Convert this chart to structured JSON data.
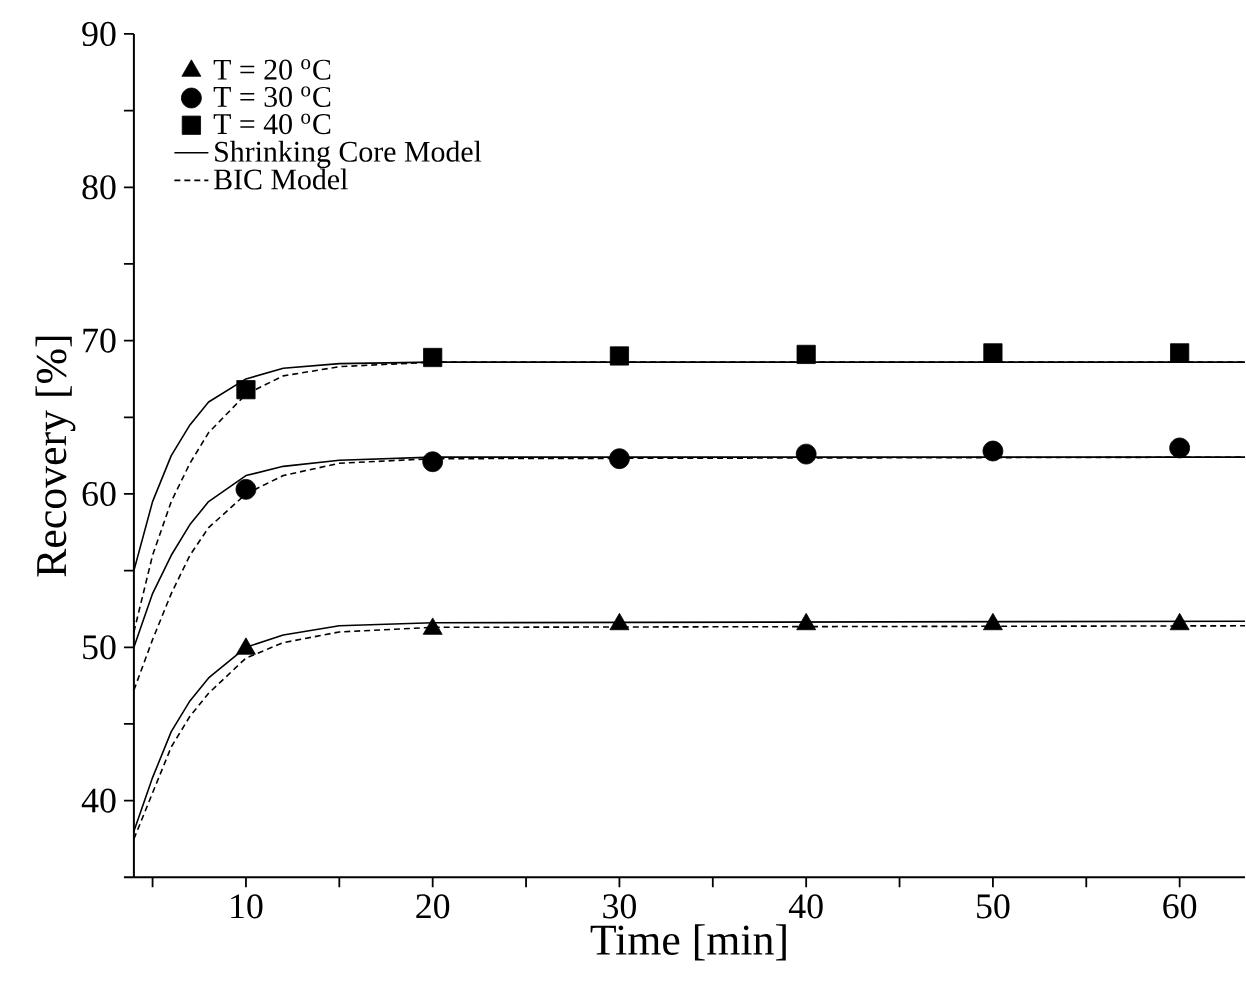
{
  "chart_data": {
    "type": "scatter",
    "xlabel": "Time [min]",
    "ylabel": "Recovery [%]",
    "xlim": [
      4,
      63.5
    ],
    "ylim": [
      35,
      90
    ],
    "xticks": [
      {
        "value": 5,
        "label": null
      },
      10,
      {
        "value": 15,
        "label": null
      },
      20,
      {
        "value": 25,
        "label": null
      },
      30,
      {
        "value": 35,
        "label": null
      },
      40,
      {
        "value": 45,
        "label": null
      },
      50,
      {
        "value": 55,
        "label": null
      },
      60
    ],
    "yticks": [
      {
        "value": 35,
        "label": null
      },
      40,
      {
        "value": 45,
        "label": null
      },
      50,
      {
        "value": 55,
        "label": null
      },
      60,
      {
        "value": 65,
        "label": null
      },
      70,
      {
        "value": 75,
        "label": null
      },
      80,
      {
        "value": 85,
        "label": null
      },
      90
    ],
    "grid": false,
    "legend": "top left",
    "series": [
      {
        "name": "T = 20 $^{o}$C",
        "marker": "triangle",
        "color": "#000000",
        "x": [
          10,
          20,
          30,
          40,
          50,
          60
        ],
        "values": [
          49.9,
          51.2,
          51.5,
          51.5,
          51.5,
          51.5
        ]
      },
      {
        "name": "T = 30 $^{o}$C",
        "marker": "circle",
        "color": "#000000",
        "x": [
          10,
          20,
          30,
          40,
          50,
          60
        ],
        "values": [
          60.3,
          62.1,
          62.3,
          62.6,
          62.8,
          63.0
        ]
      },
      {
        "name": "T = 40 $^{o}$C",
        "marker": "square",
        "color": "#000000",
        "x": [
          10,
          20,
          30,
          40,
          50,
          60
        ],
        "values": [
          66.8,
          68.9,
          69.0,
          69.1,
          69.2,
          69.2
        ]
      },
      {
        "name": "Shrinking Core Model",
        "type": "line",
        "marker": "none",
        "line_style": "solid",
        "color": "#000000",
        "x": [
          4,
          5,
          6,
          7,
          8,
          10,
          12,
          15,
          20,
          63.5
        ],
        "values": [
          38,
          41.5,
          44.5,
          46.5,
          48,
          50,
          50.8,
          51.4,
          51.6,
          51.7
        ]
      },
      {
        "type": "line",
        "marker": "none",
        "line_style": "solid",
        "color": "#000000",
        "x": [
          4,
          5,
          6,
          7,
          8,
          10,
          12,
          15,
          20,
          63.5
        ],
        "values": [
          50,
          53.5,
          56,
          58,
          59.5,
          61.2,
          61.8,
          62.2,
          62.4,
          62.4
        ]
      },
      {
        "type": "line",
        "marker": "none",
        "line_style": "solid",
        "color": "#000000",
        "x": [
          4,
          5,
          6,
          7,
          8,
          10,
          12,
          15,
          20,
          63.5
        ],
        "values": [
          55,
          59.5,
          62.5,
          64.5,
          66,
          67.5,
          68.2,
          68.5,
          68.6,
          68.6
        ]
      },
      {
        "name": "BIC Model",
        "type": "line",
        "marker": "none",
        "line_style": "dashed",
        "color": "#000000",
        "x": [
          4,
          5,
          6,
          7,
          8,
          10,
          12,
          15,
          20,
          63.5
        ],
        "values": [
          37.5,
          40.5,
          43.5,
          45.5,
          47,
          49.3,
          50.3,
          51,
          51.3,
          51.4
        ]
      },
      {
        "type": "line",
        "marker": "none",
        "line_style": "dashed",
        "color": "#000000",
        "x": [
          4,
          5,
          6,
          7,
          8,
          10,
          12,
          15,
          20,
          63.5
        ],
        "values": [
          47.2,
          50.5,
          53.5,
          56,
          57.8,
          60,
          61.2,
          62,
          62.3,
          62.4
        ]
      },
      {
        "type": "line",
        "marker": "none",
        "line_style": "dashed",
        "color": "#000000",
        "x": [
          4,
          5,
          6,
          7,
          8,
          10,
          12,
          15,
          20,
          63.5
        ],
        "values": [
          51,
          56,
          59.5,
          62,
          64,
          66.5,
          67.7,
          68.3,
          68.6,
          68.6
        ]
      }
    ]
  }
}
